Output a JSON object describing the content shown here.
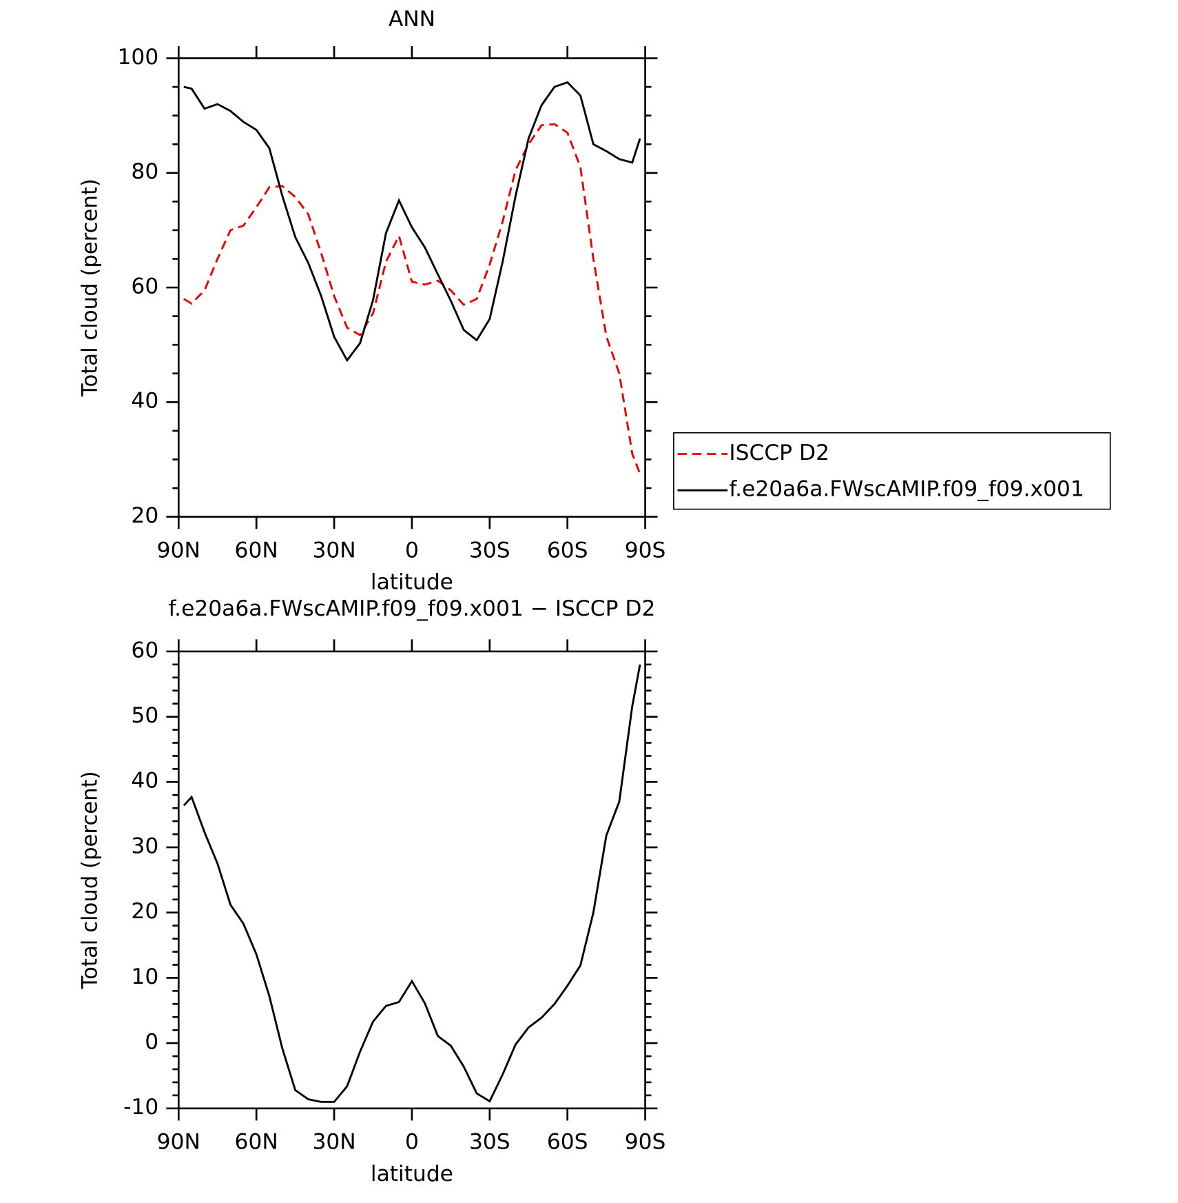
{
  "chart_data": [
    {
      "type": "line",
      "title": "ANN",
      "xlabel": "latitude",
      "ylabel": "Total cloud (percent)",
      "x": [
        88,
        85,
        80,
        75,
        70,
        65,
        60,
        55,
        50,
        45,
        40,
        35,
        30,
        25,
        20,
        15,
        10,
        5,
        0,
        -5,
        -10,
        -15,
        -20,
        -25,
        -30,
        -35,
        -40,
        -45,
        -50,
        -55,
        -60,
        -65,
        -70,
        -75,
        -80,
        -85,
        -88
      ],
      "series": [
        {
          "name": "ISCCP D2",
          "color": "#ee0000",
          "line_style": "dashed",
          "values": [
            58,
            57.2,
            59.5,
            65,
            70,
            70.8,
            74,
            77.5,
            77.7,
            75.8,
            72.8,
            66,
            58.5,
            53,
            51.7,
            55.5,
            64.5,
            69,
            61,
            60.5,
            61.2,
            59.5,
            57,
            58,
            64,
            71.5,
            80.5,
            85,
            88.3,
            88.5,
            87,
            81,
            65,
            51.5,
            45,
            31,
            27.5
          ]
        },
        {
          "name": "f.e20a6a.FWscAMIP.f09_f09.x001",
          "color": "#000000",
          "line_style": "solid",
          "values": [
            95,
            94.7,
            91.2,
            92,
            90.8,
            88.9,
            87.5,
            84.3,
            76,
            68.8,
            64.3,
            58.5,
            51.4,
            47.3,
            50.3,
            57.8,
            69.5,
            75.2,
            70.5,
            67,
            62.3,
            57.7,
            52.6,
            50.8,
            54.5,
            64.5,
            76,
            86,
            91.8,
            95,
            95.8,
            93.5,
            85,
            83.8,
            82.4,
            81.8,
            86
          ]
        }
      ],
      "xlim": [
        90,
        -90
      ],
      "xticks": [
        {
          "value": 90,
          "label": "90N"
        },
        {
          "value": 60,
          "label": "60N"
        },
        {
          "value": 30,
          "label": "30N"
        },
        0,
        {
          "value": -30,
          "label": "30S"
        },
        {
          "value": -60,
          "label": "60S"
        },
        {
          "value": -90,
          "label": "90S"
        }
      ],
      "ylim": [
        20,
        100
      ],
      "yticks": [
        20,
        40,
        60,
        80,
        100
      ],
      "legend": "right"
    },
    {
      "type": "line",
      "title": "f.e20a6a.FWscAMIP.f09_f09.x001 − ISCCP D2",
      "xlabel": "latitude",
      "ylabel": "Total cloud (percent)",
      "x": [
        88,
        85,
        80,
        75,
        70,
        65,
        60,
        55,
        50,
        45,
        40,
        35,
        30,
        25,
        20,
        15,
        10,
        5,
        0,
        -5,
        -10,
        -15,
        -20,
        -25,
        -30,
        -35,
        -40,
        -45,
        -50,
        -55,
        -60,
        -65,
        -70,
        -75,
        -80,
        -85,
        -88
      ],
      "values": [
        36.4,
        37.7,
        32.3,
        27.5,
        21.2,
        18.3,
        13.6,
        7.2,
        -0.8,
        -7.2,
        -8.6,
        -9,
        -9,
        -6.6,
        -1.3,
        3.3,
        5.7,
        6.3,
        9.5,
        6.1,
        1.1,
        -0.4,
        -3.6,
        -7.7,
        -8.9,
        -4.8,
        -0.2,
        2.4,
        3.9,
        6,
        8.8,
        11.9,
        20,
        31.8,
        37,
        51.6,
        58
      ],
      "color": "#000000",
      "xlim": [
        90,
        -90
      ],
      "xticks": [
        {
          "value": 90,
          "label": "90N"
        },
        {
          "value": 60,
          "label": "60N"
        },
        {
          "value": 30,
          "label": "30N"
        },
        0,
        {
          "value": -30,
          "label": "30S"
        },
        {
          "value": -60,
          "label": "60S"
        },
        {
          "value": -90,
          "label": "90S"
        }
      ],
      "ylim": [
        -10,
        60
      ],
      "yticks": [
        -10,
        0,
        10,
        20,
        30,
        40,
        50,
        60
      ]
    }
  ]
}
